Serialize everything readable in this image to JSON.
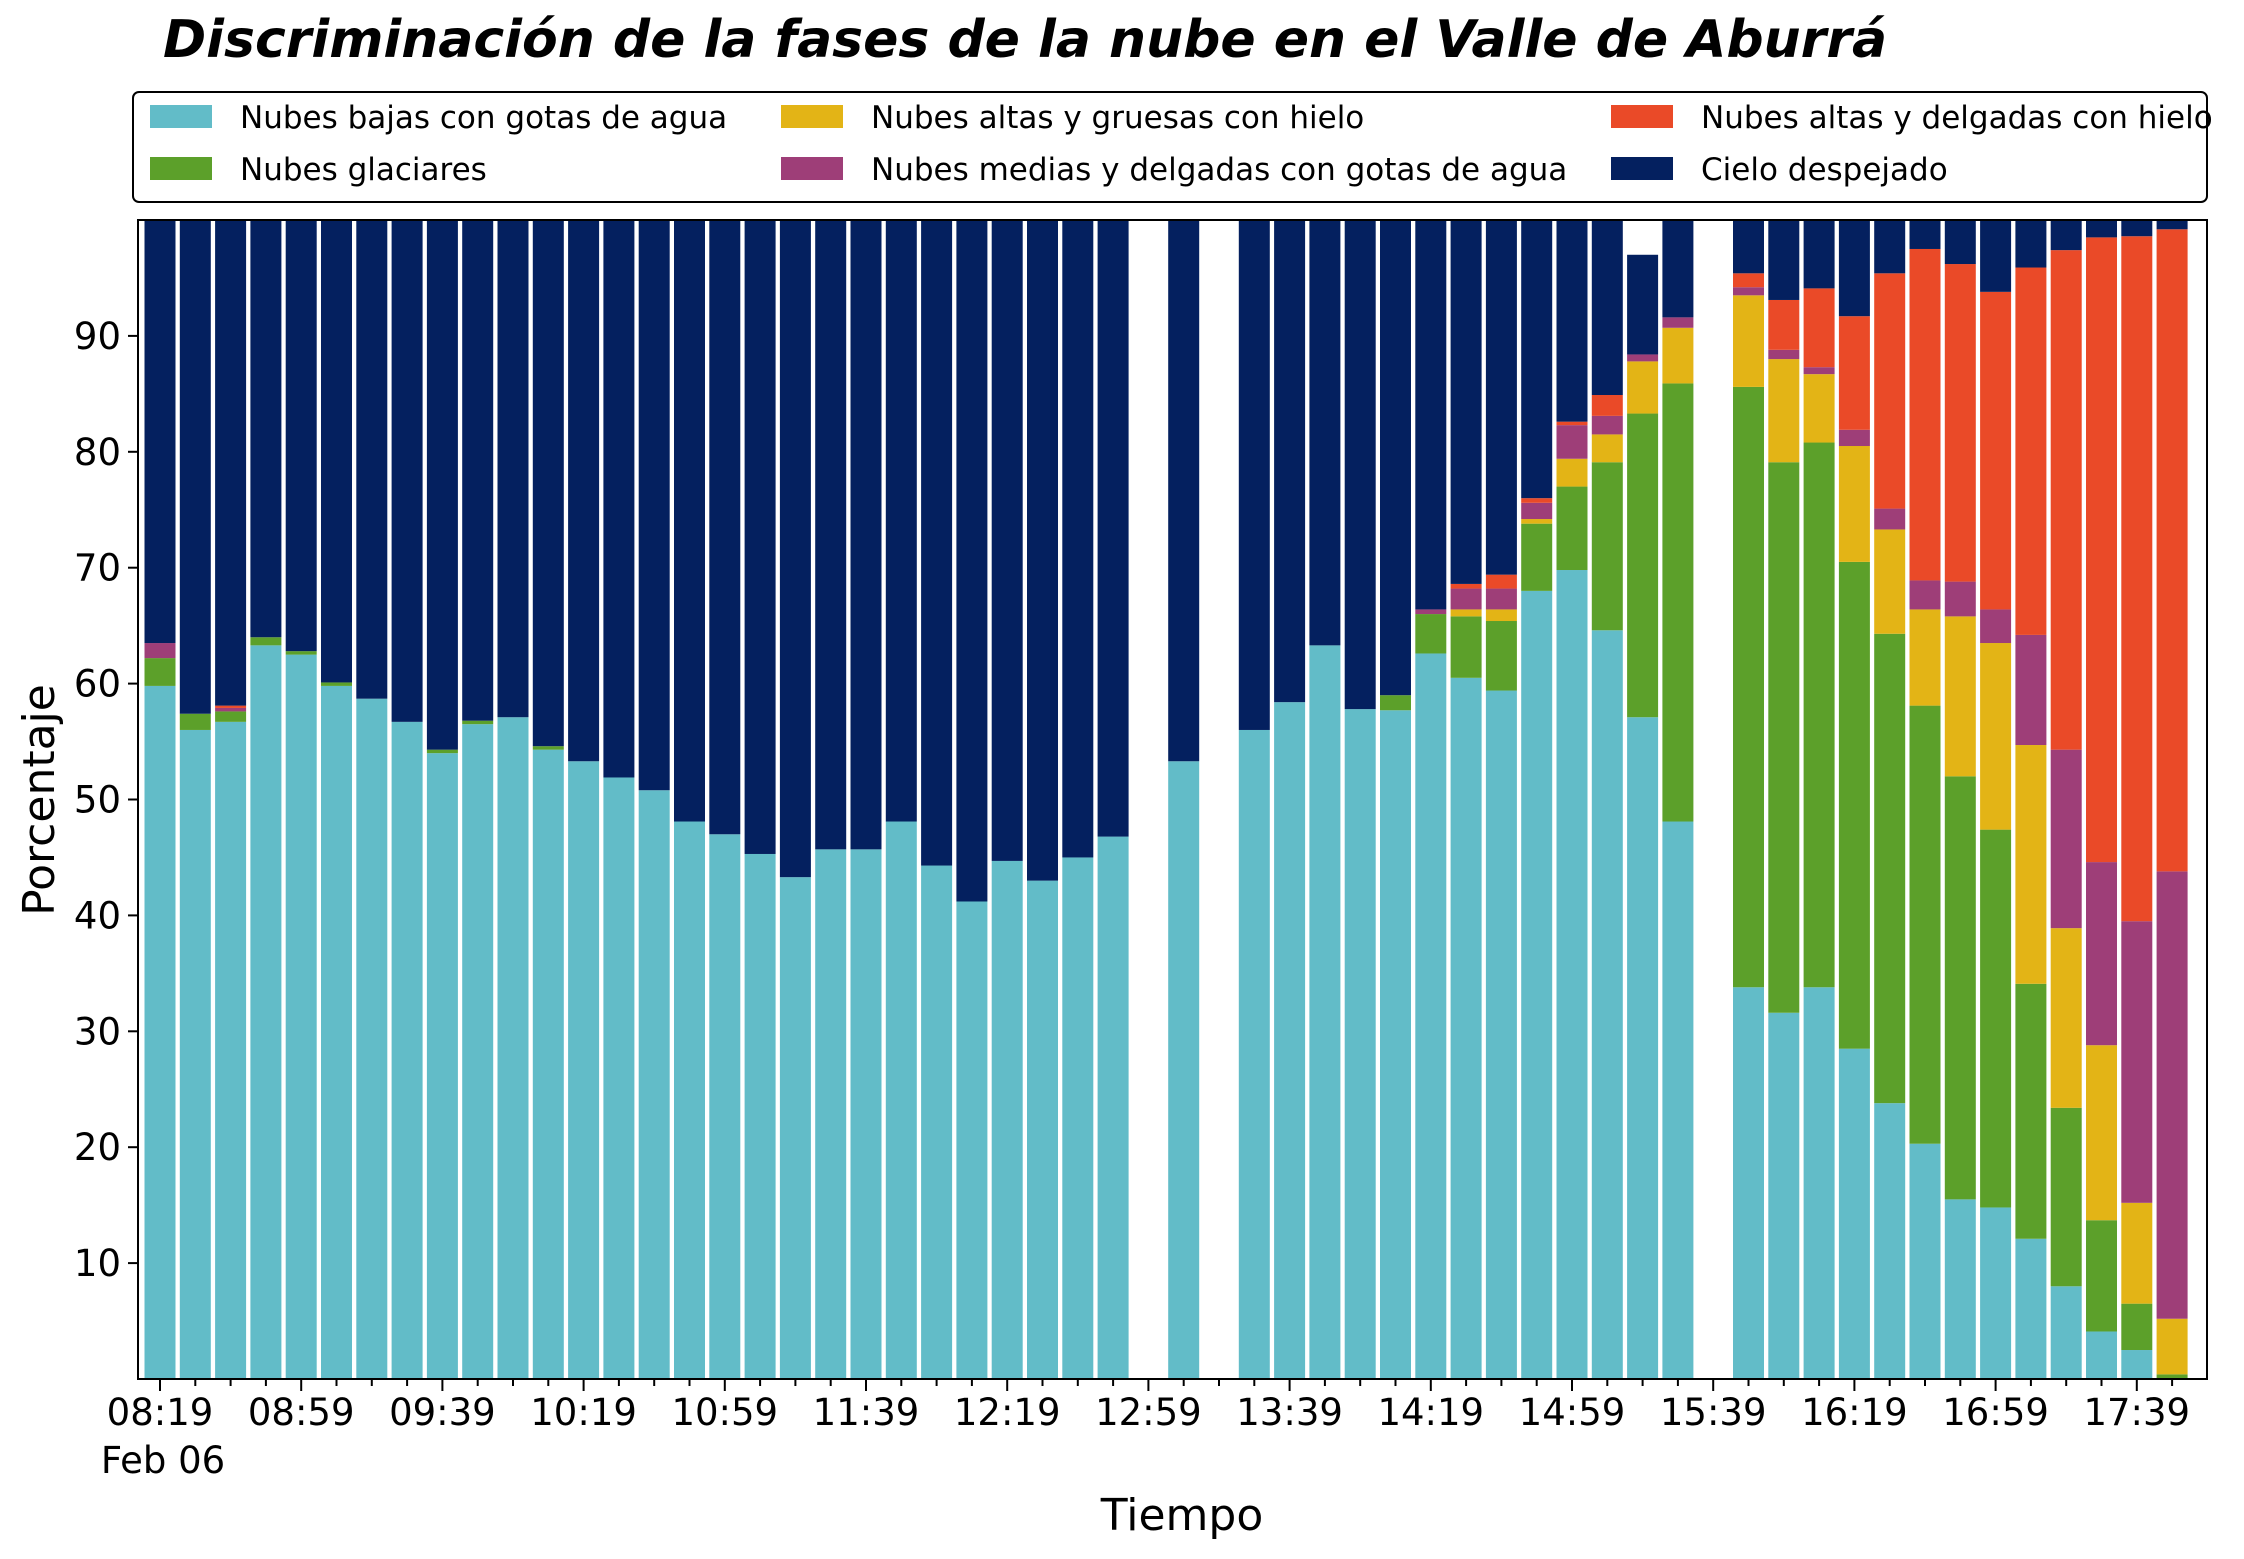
{
  "chart_data": {
    "type": "bar",
    "stacked": true,
    "title": "Discriminación de la fases de la nube en el Valle de Aburrá",
    "xlabel": "Tiempo",
    "ylabel": "Porcentaje",
    "ylim": [
      0,
      100
    ],
    "yticks": [
      10,
      20,
      30,
      40,
      50,
      60,
      70,
      80,
      90
    ],
    "date_label": "Feb 06",
    "grid": false,
    "legend_position": "top",
    "x_start_minutes": 499,
    "x_step_minutes": 10,
    "xticks": [
      "08:19",
      "08:59",
      "09:39",
      "10:19",
      "10:59",
      "11:39",
      "12:19",
      "12:59",
      "13:39",
      "14:19",
      "14:59",
      "15:39",
      "16:19",
      "16:59",
      "17:39"
    ],
    "categories": [
      "08:19",
      "08:29",
      "08:39",
      "08:49",
      "08:59",
      "09:09",
      "09:19",
      "09:29",
      "09:39",
      "09:49",
      "09:59",
      "10:09",
      "10:19",
      "10:29",
      "10:39",
      "10:49",
      "10:59",
      "11:09",
      "11:19",
      "11:29",
      "11:39",
      "11:49",
      "11:59",
      "12:09",
      "12:19",
      "12:29",
      "12:39",
      "12:49",
      "12:59",
      "13:09",
      "13:19",
      "13:29",
      "13:39",
      "13:49",
      "13:59",
      "14:09",
      "14:19",
      "14:29",
      "14:39",
      "14:49",
      "14:59",
      "15:09",
      "15:19",
      "15:29",
      "15:39",
      "15:49",
      "15:59",
      "16:09",
      "16:19",
      "16:29",
      "16:39",
      "16:49",
      "16:59",
      "17:09",
      "17:19",
      "17:29",
      "17:39",
      "17:49"
    ],
    "series": [
      {
        "name": "Nubes bajas con gotas de agua",
        "color": "#62bcc8",
        "values": [
          59.8,
          56,
          56.7,
          63.3,
          62.5,
          59.8,
          58.7,
          56.7,
          54,
          56.5,
          57.1,
          54.3,
          53.3,
          51.9,
          50.8,
          48.1,
          47.0,
          45.3,
          43.3,
          45.7,
          45.7,
          48.1,
          44.3,
          41.2,
          44.7,
          43.0,
          45.0,
          46.8,
          null,
          53.3,
          null,
          56.0,
          58.4,
          63.3,
          57.8,
          57.7,
          62.6,
          60.5,
          59.4,
          68.0,
          69.8,
          64.6,
          57.1,
          48.1,
          null,
          33.8,
          31.6,
          33.8,
          28.5,
          23.8,
          20.3,
          15.5,
          14.8,
          12.1,
          8.0,
          4.1,
          2.5,
          0.0
        ]
      },
      {
        "name": "Nubes glaciares",
        "color": "#5ca02a",
        "values": [
          2.4,
          1.4,
          0.9,
          0.7,
          0.3,
          0.3,
          0,
          0,
          0.3,
          0.3,
          0,
          0.3,
          0,
          0,
          0,
          0,
          0,
          0,
          0,
          0,
          0,
          0,
          0,
          0,
          0,
          0,
          0,
          0,
          null,
          0,
          null,
          0,
          0,
          0,
          0,
          1.3,
          3.4,
          5.3,
          6.0,
          5.8,
          7.2,
          14.5,
          26.2,
          37.8,
          null,
          51.8,
          47.5,
          47.0,
          42.0,
          40.5,
          37.8,
          36.5,
          32.6,
          22.0,
          15.4,
          9.6,
          4.0,
          0.4
        ]
      },
      {
        "name": "Nubes altas y gruesas con hielo",
        "color": "#e3b416",
        "values": [
          0,
          0,
          0,
          0,
          0,
          0,
          0,
          0,
          0,
          0,
          0,
          0,
          0,
          0,
          0,
          0,
          0,
          0,
          0,
          0,
          0,
          0,
          0,
          0,
          0,
          0,
          0,
          0,
          null,
          0,
          null,
          0,
          0,
          0,
          0,
          0,
          0,
          0.6,
          1.0,
          0.4,
          2.4,
          2.4,
          4.5,
          4.8,
          null,
          7.9,
          8.9,
          5.9,
          10.0,
          9.0,
          8.3,
          13.8,
          16.1,
          20.6,
          15.5,
          15.1,
          8.7,
          4.8
        ]
      },
      {
        "name": "Nubes medias y delgadas con gotas de agua",
        "color": "#9e3e78",
        "values": [
          1.3,
          0,
          0.3,
          0,
          0,
          0,
          0,
          0,
          0,
          0,
          0,
          0,
          0,
          0,
          0,
          0,
          0,
          0,
          0,
          0,
          0,
          0,
          0,
          0,
          0,
          0,
          0,
          0,
          null,
          0,
          null,
          0,
          0,
          0,
          0,
          0,
          0.4,
          1.8,
          1.8,
          1.4,
          2.9,
          1.6,
          0.6,
          0.9,
          null,
          0.7,
          0.8,
          0.6,
          1.4,
          1.8,
          2.5,
          3.0,
          2.9,
          9.5,
          15.4,
          15.8,
          24.3,
          38.6
        ]
      },
      {
        "name": "Nubes altas y delgadas con hielo",
        "color": "#ea4a28",
        "values": [
          0,
          0,
          0.2,
          0,
          0,
          0,
          0,
          0,
          0,
          0,
          0,
          0,
          0,
          0,
          0,
          0,
          0,
          0,
          0,
          0,
          0,
          0,
          0,
          0,
          0,
          0,
          0,
          0,
          null,
          0,
          null,
          0,
          0,
          0,
          0,
          0,
          0,
          0.4,
          1.2,
          0.4,
          0.3,
          1.8,
          0,
          0,
          null,
          1.2,
          4.3,
          6.8,
          9.8,
          20.3,
          28.6,
          27.4,
          27.4,
          31.7,
          43.1,
          53.9,
          59.1,
          55.4
        ]
      },
      {
        "name": "Cielo despejado",
        "color": "#04205f",
        "values": [
          36.5,
          42.6,
          41.9,
          36.0,
          37.2,
          39.9,
          41.3,
          43.3,
          45.7,
          43.2,
          42.9,
          45.4,
          46.7,
          48.1,
          49.2,
          51.9,
          53.0,
          54.7,
          56.7,
          54.3,
          54.3,
          51.9,
          55.7,
          58.8,
          55.3,
          57.0,
          55.0,
          53.2,
          null,
          46.7,
          null,
          44.0,
          41.6,
          36.7,
          42.2,
          41.0,
          33.6,
          31.4,
          30.6,
          24.0,
          17.4,
          15.1,
          8.6,
          8.4,
          null,
          4.6,
          6.9,
          5.9,
          8.3,
          4.6,
          2.5,
          3.8,
          6.2,
          4.1,
          2.6,
          1.5,
          1.4,
          0.8
        ]
      }
    ]
  }
}
